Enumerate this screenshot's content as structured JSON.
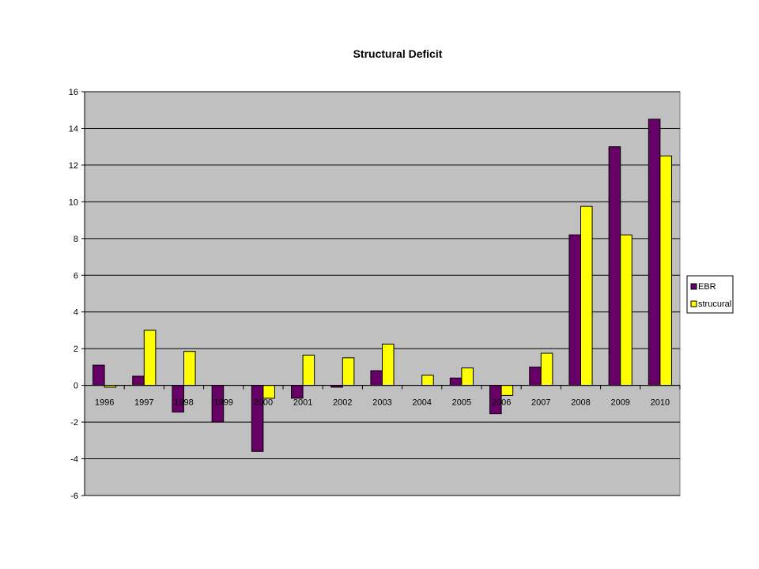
{
  "chart_data": {
    "type": "bar",
    "title": "Structural Deficit",
    "xlabel": "",
    "ylabel": "",
    "categories": [
      "1996",
      "1997",
      "1998",
      "1999",
      "2000",
      "2001",
      "2002",
      "2003",
      "2004",
      "2005",
      "2006",
      "2007",
      "2008",
      "2009",
      "2010"
    ],
    "series": [
      {
        "name": "EBR",
        "color": "#660066",
        "values": [
          1.1,
          0.5,
          -1.45,
          -2.0,
          -3.6,
          -0.7,
          -0.1,
          0.8,
          0,
          0.4,
          -1.55,
          1.0,
          8.2,
          13.0,
          14.5
        ]
      },
      {
        "name": "strucural",
        "color": "#ffff00",
        "values": [
          -0.1,
          3.0,
          1.85,
          0,
          -0.7,
          1.65,
          1.5,
          2.25,
          0.55,
          0.95,
          -0.55,
          1.75,
          9.75,
          8.2,
          12.5
        ]
      }
    ],
    "ylim": [
      -6,
      16
    ],
    "yticks": [
      -6,
      -4,
      -2,
      0,
      2,
      4,
      6,
      8,
      10,
      12,
      14,
      16
    ],
    "grid": true,
    "legend": "right",
    "plot_background": "#c0c0c0"
  }
}
